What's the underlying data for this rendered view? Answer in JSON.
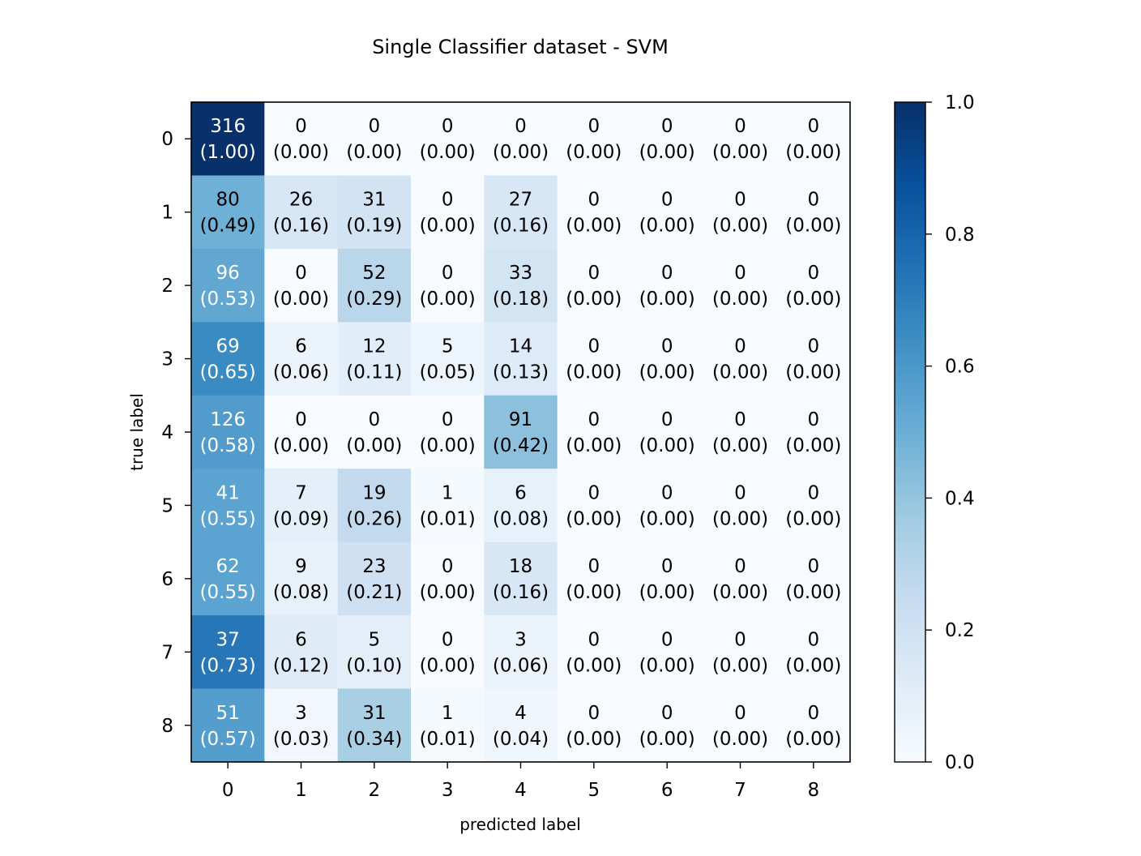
{
  "chart_data": {
    "type": "heatmap",
    "title": "Single Classifier dataset - SVM",
    "xlabel": "predicted label",
    "ylabel": "true label",
    "x_categories": [
      "0",
      "1",
      "2",
      "3",
      "4",
      "5",
      "6",
      "7",
      "8"
    ],
    "y_categories": [
      "0",
      "1",
      "2",
      "3",
      "4",
      "5",
      "6",
      "7",
      "8"
    ],
    "counts": [
      [
        316,
        0,
        0,
        0,
        0,
        0,
        0,
        0,
        0
      ],
      [
        80,
        26,
        31,
        0,
        27,
        0,
        0,
        0,
        0
      ],
      [
        96,
        0,
        52,
        0,
        33,
        0,
        0,
        0,
        0
      ],
      [
        69,
        6,
        12,
        5,
        14,
        0,
        0,
        0,
        0
      ],
      [
        126,
        0,
        0,
        0,
        91,
        0,
        0,
        0,
        0
      ],
      [
        41,
        7,
        19,
        1,
        6,
        0,
        0,
        0,
        0
      ],
      [
        62,
        9,
        23,
        0,
        18,
        0,
        0,
        0,
        0
      ],
      [
        37,
        6,
        5,
        0,
        3,
        0,
        0,
        0,
        0
      ],
      [
        51,
        3,
        31,
        1,
        4,
        0,
        0,
        0,
        0
      ]
    ],
    "normalized": [
      [
        "1.00",
        "0.00",
        "0.00",
        "0.00",
        "0.00",
        "0.00",
        "0.00",
        "0.00",
        "0.00"
      ],
      [
        "0.49",
        "0.16",
        "0.19",
        "0.00",
        "0.16",
        "0.00",
        "0.00",
        "0.00",
        "0.00"
      ],
      [
        "0.53",
        "0.00",
        "0.29",
        "0.00",
        "0.18",
        "0.00",
        "0.00",
        "0.00",
        "0.00"
      ],
      [
        "0.65",
        "0.06",
        "0.11",
        "0.05",
        "0.13",
        "0.00",
        "0.00",
        "0.00",
        "0.00"
      ],
      [
        "0.58",
        "0.00",
        "0.00",
        "0.00",
        "0.42",
        "0.00",
        "0.00",
        "0.00",
        "0.00"
      ],
      [
        "0.55",
        "0.09",
        "0.26",
        "0.01",
        "0.08",
        "0.00",
        "0.00",
        "0.00",
        "0.00"
      ],
      [
        "0.55",
        "0.08",
        "0.21",
        "0.00",
        "0.16",
        "0.00",
        "0.00",
        "0.00",
        "0.00"
      ],
      [
        "0.73",
        "0.12",
        "0.10",
        "0.00",
        "0.06",
        "0.00",
        "0.00",
        "0.00",
        "0.00"
      ],
      [
        "0.57",
        "0.03",
        "0.34",
        "0.01",
        "0.04",
        "0.00",
        "0.00",
        "0.00",
        "0.00"
      ]
    ],
    "colorbar": {
      "range": [
        0.0,
        1.0
      ],
      "ticks": [
        "0.0",
        "0.2",
        "0.4",
        "0.6",
        "0.8",
        "1.0"
      ],
      "colormap": "Blues",
      "colors": [
        "#f7fbff",
        "#deebf7",
        "#c6dbef",
        "#9ecae1",
        "#6baed6",
        "#4292c6",
        "#2171b5",
        "#08519c",
        "#08306b"
      ]
    },
    "grid": false,
    "text_colors": {
      "light": "#ffffff",
      "dark": "#000000"
    }
  }
}
